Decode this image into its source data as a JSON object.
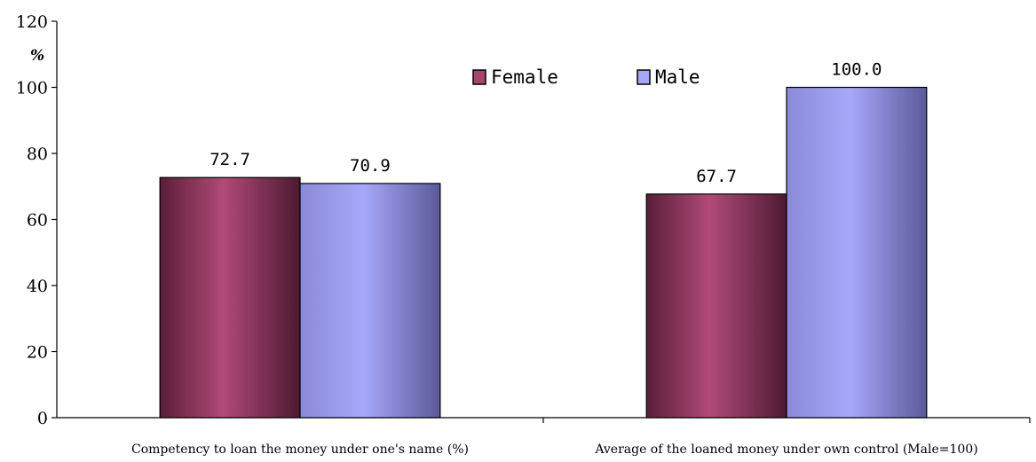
{
  "chart_data": {
    "type": "bar",
    "unit": "%",
    "categories": [
      "Competency to loan the money under one's name (%)",
      "Average of the loaned money under own control (Male=100)"
    ],
    "series": [
      {
        "name": "Female",
        "values": [
          72.7,
          67.7
        ],
        "value_labels": [
          "72.7",
          "67.7"
        ],
        "color": "#a8456f"
      },
      {
        "name": "Male",
        "values": [
          70.9,
          100.0
        ],
        "value_labels": [
          "70.9",
          "100.0"
        ],
        "color": "#a6a6f7"
      }
    ],
    "ylim": [
      0,
      120
    ],
    "yticks": [
      "0",
      "20",
      "40",
      "60",
      "80",
      "100",
      "120"
    ],
    "legend_position": "top-center",
    "grid": false
  }
}
